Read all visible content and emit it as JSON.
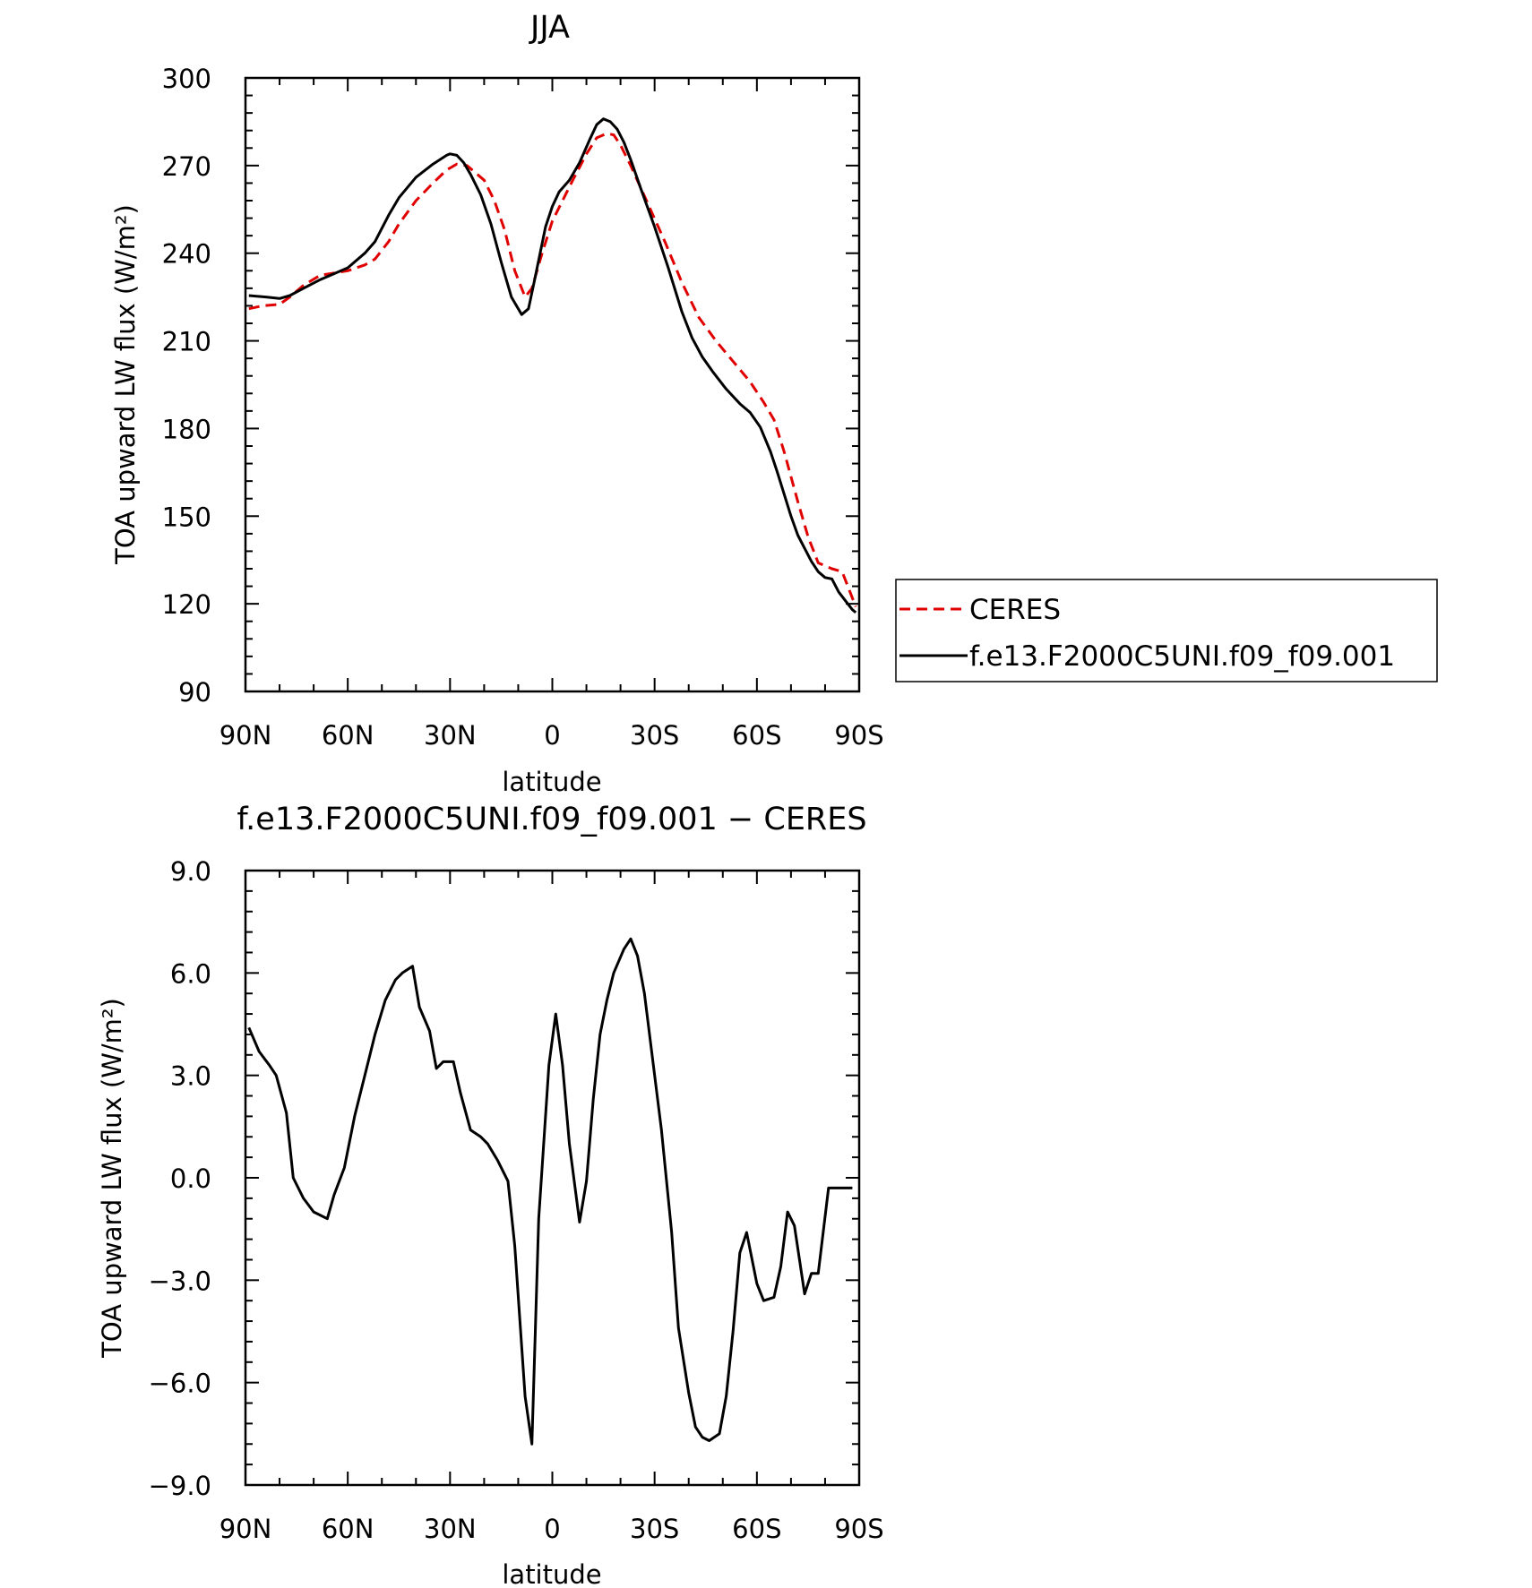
{
  "chart_data": [
    {
      "type": "line",
      "title": "JJA",
      "xlabel": "latitude",
      "ylabel": "TOA upward LW flux (W/m²)",
      "xlim": [
        90,
        -90
      ],
      "ylim": [
        90,
        300
      ],
      "xticks": [
        90,
        60,
        30,
        0,
        -30,
        -60,
        -90
      ],
      "xticklabels": [
        "90N",
        "60N",
        "30N",
        "0",
        "30S",
        "60S",
        "90S"
      ],
      "yticks": [
        90,
        120,
        150,
        180,
        210,
        240,
        270,
        300
      ],
      "yticklabels": [
        "90",
        "120",
        "150",
        "180",
        "210",
        "240",
        "270",
        "300"
      ],
      "legend": "right",
      "series": [
        {
          "name": "CERES",
          "color": "#e00000",
          "dash": true,
          "x": [
            89,
            85,
            80,
            77,
            73,
            68,
            65,
            60,
            55,
            52,
            48,
            45,
            40,
            35,
            31,
            28,
            25,
            20,
            17,
            14,
            11,
            8,
            6,
            3,
            0,
            -3,
            -6,
            -10,
            -13,
            -16,
            -18,
            -20,
            -23,
            -28,
            -33,
            -38,
            -43,
            -48,
            -53,
            -58,
            -62,
            -65,
            -68,
            -72,
            -75,
            -78,
            -82,
            -85,
            -89
          ],
          "values": [
            221,
            222,
            222.5,
            225,
            229,
            232.5,
            233,
            234,
            236,
            238,
            244,
            250,
            258,
            264,
            268.5,
            270.5,
            270,
            265,
            258,
            248,
            234,
            225,
            228,
            240,
            251,
            258,
            265,
            274,
            279.5,
            281,
            280.5,
            277,
            270,
            257,
            244,
            230,
            218,
            210,
            203,
            196,
            189,
            183,
            172,
            155,
            143,
            134,
            132,
            131,
            119
          ]
        },
        {
          "name": "f.e13.F2000C5UNI.f09_f09.001",
          "color": "#000000",
          "dash": false,
          "x": [
            89,
            84,
            80,
            77,
            73,
            68,
            65,
            60,
            55,
            52,
            48,
            45,
            40,
            35,
            31,
            30,
            28,
            26,
            24,
            21,
            18,
            15,
            12,
            9,
            7,
            5,
            2,
            0,
            -2,
            -5,
            -8,
            -11,
            -13,
            -15,
            -17,
            -19,
            -21,
            -23,
            -26,
            -30,
            -34,
            -38,
            -41,
            -44,
            -47,
            -51,
            -55,
            -58,
            -61,
            -64,
            -66,
            -68,
            -70,
            -72,
            -74,
            -76,
            -78,
            -80,
            -82,
            -84,
            -86,
            -88,
            -89
          ],
          "values": [
            225.5,
            225,
            224.5,
            225.5,
            228,
            231,
            232.5,
            235,
            240,
            244,
            253,
            259,
            266,
            270.5,
            273.5,
            274,
            273.5,
            271,
            267,
            260,
            250,
            237,
            225,
            219,
            221,
            232,
            249,
            256,
            261,
            265,
            271,
            279,
            284,
            286,
            285,
            282.5,
            278,
            272,
            262,
            249,
            235,
            220,
            211,
            204.5,
            199.5,
            193.5,
            188.5,
            185.5,
            180.5,
            172,
            165,
            157.5,
            150,
            143.5,
            139,
            134.5,
            131,
            129,
            128.5,
            124,
            121,
            118,
            117
          ]
        }
      ]
    },
    {
      "type": "line",
      "title": "f.e13.F2000C5UNI.f09_f09.001 − CERES",
      "xlabel": "latitude",
      "ylabel": "TOA upward LW flux (W/m²)",
      "xlim": [
        90,
        -90
      ],
      "ylim": [
        -9,
        9
      ],
      "xticks": [
        90,
        60,
        30,
        0,
        -30,
        -60,
        -90
      ],
      "xticklabels": [
        "90N",
        "60N",
        "30N",
        "0",
        "30S",
        "60S",
        "90S"
      ],
      "yticks": [
        -9,
        -6,
        -3,
        0,
        3,
        6,
        9
      ],
      "yticklabels": [
        "−9.0",
        "−6.0",
        "−3.0",
        "0.0",
        "3.0",
        "6.0",
        "9.0"
      ],
      "series": [
        {
          "color": "#000000",
          "dash": false,
          "x": [
            89,
            86,
            83,
            81,
            78,
            76,
            73,
            70,
            66,
            64,
            61,
            58,
            55,
            52,
            49,
            46,
            44,
            41,
            39,
            36,
            34,
            32,
            29,
            27,
            24,
            21,
            19,
            16,
            13,
            11,
            8,
            6,
            4,
            1,
            -1,
            -3,
            -5,
            -8,
            -10,
            -12,
            -14,
            -16,
            -18,
            -21,
            -23,
            -25,
            -27,
            -29,
            -32,
            -35,
            -37,
            -40,
            -42,
            -44,
            -46,
            -49,
            -51,
            -53,
            -55,
            -57,
            -60,
            -62,
            -65,
            -67,
            -69,
            -71,
            -74,
            -76,
            -78,
            -81,
            -83,
            -85,
            -88
          ],
          "values": [
            4.4,
            3.7,
            3.3,
            3.0,
            1.9,
            0.0,
            -0.6,
            -1.0,
            -1.2,
            -0.5,
            0.3,
            1.8,
            3.0,
            4.2,
            5.2,
            5.8,
            6.0,
            6.2,
            5.0,
            4.3,
            3.2,
            3.4,
            3.4,
            2.5,
            1.4,
            1.2,
            1.0,
            0.5,
            -0.1,
            -2.0,
            -6.4,
            -7.8,
            -1.2,
            3.3,
            4.8,
            3.3,
            1.0,
            -1.3,
            -0.1,
            2.3,
            4.2,
            5.2,
            6.0,
            6.7,
            7.0,
            6.5,
            5.4,
            3.8,
            1.4,
            -1.6,
            -4.4,
            -6.3,
            -7.3,
            -7.6,
            -7.7,
            -7.5,
            -6.4,
            -4.5,
            -2.2,
            -1.6,
            -3.1,
            -3.6,
            -3.5,
            -2.6,
            -1.0,
            -1.4,
            -3.4,
            -2.8,
            -2.8,
            -0.3,
            -0.3,
            -0.3,
            -0.3
          ]
        }
      ]
    }
  ]
}
